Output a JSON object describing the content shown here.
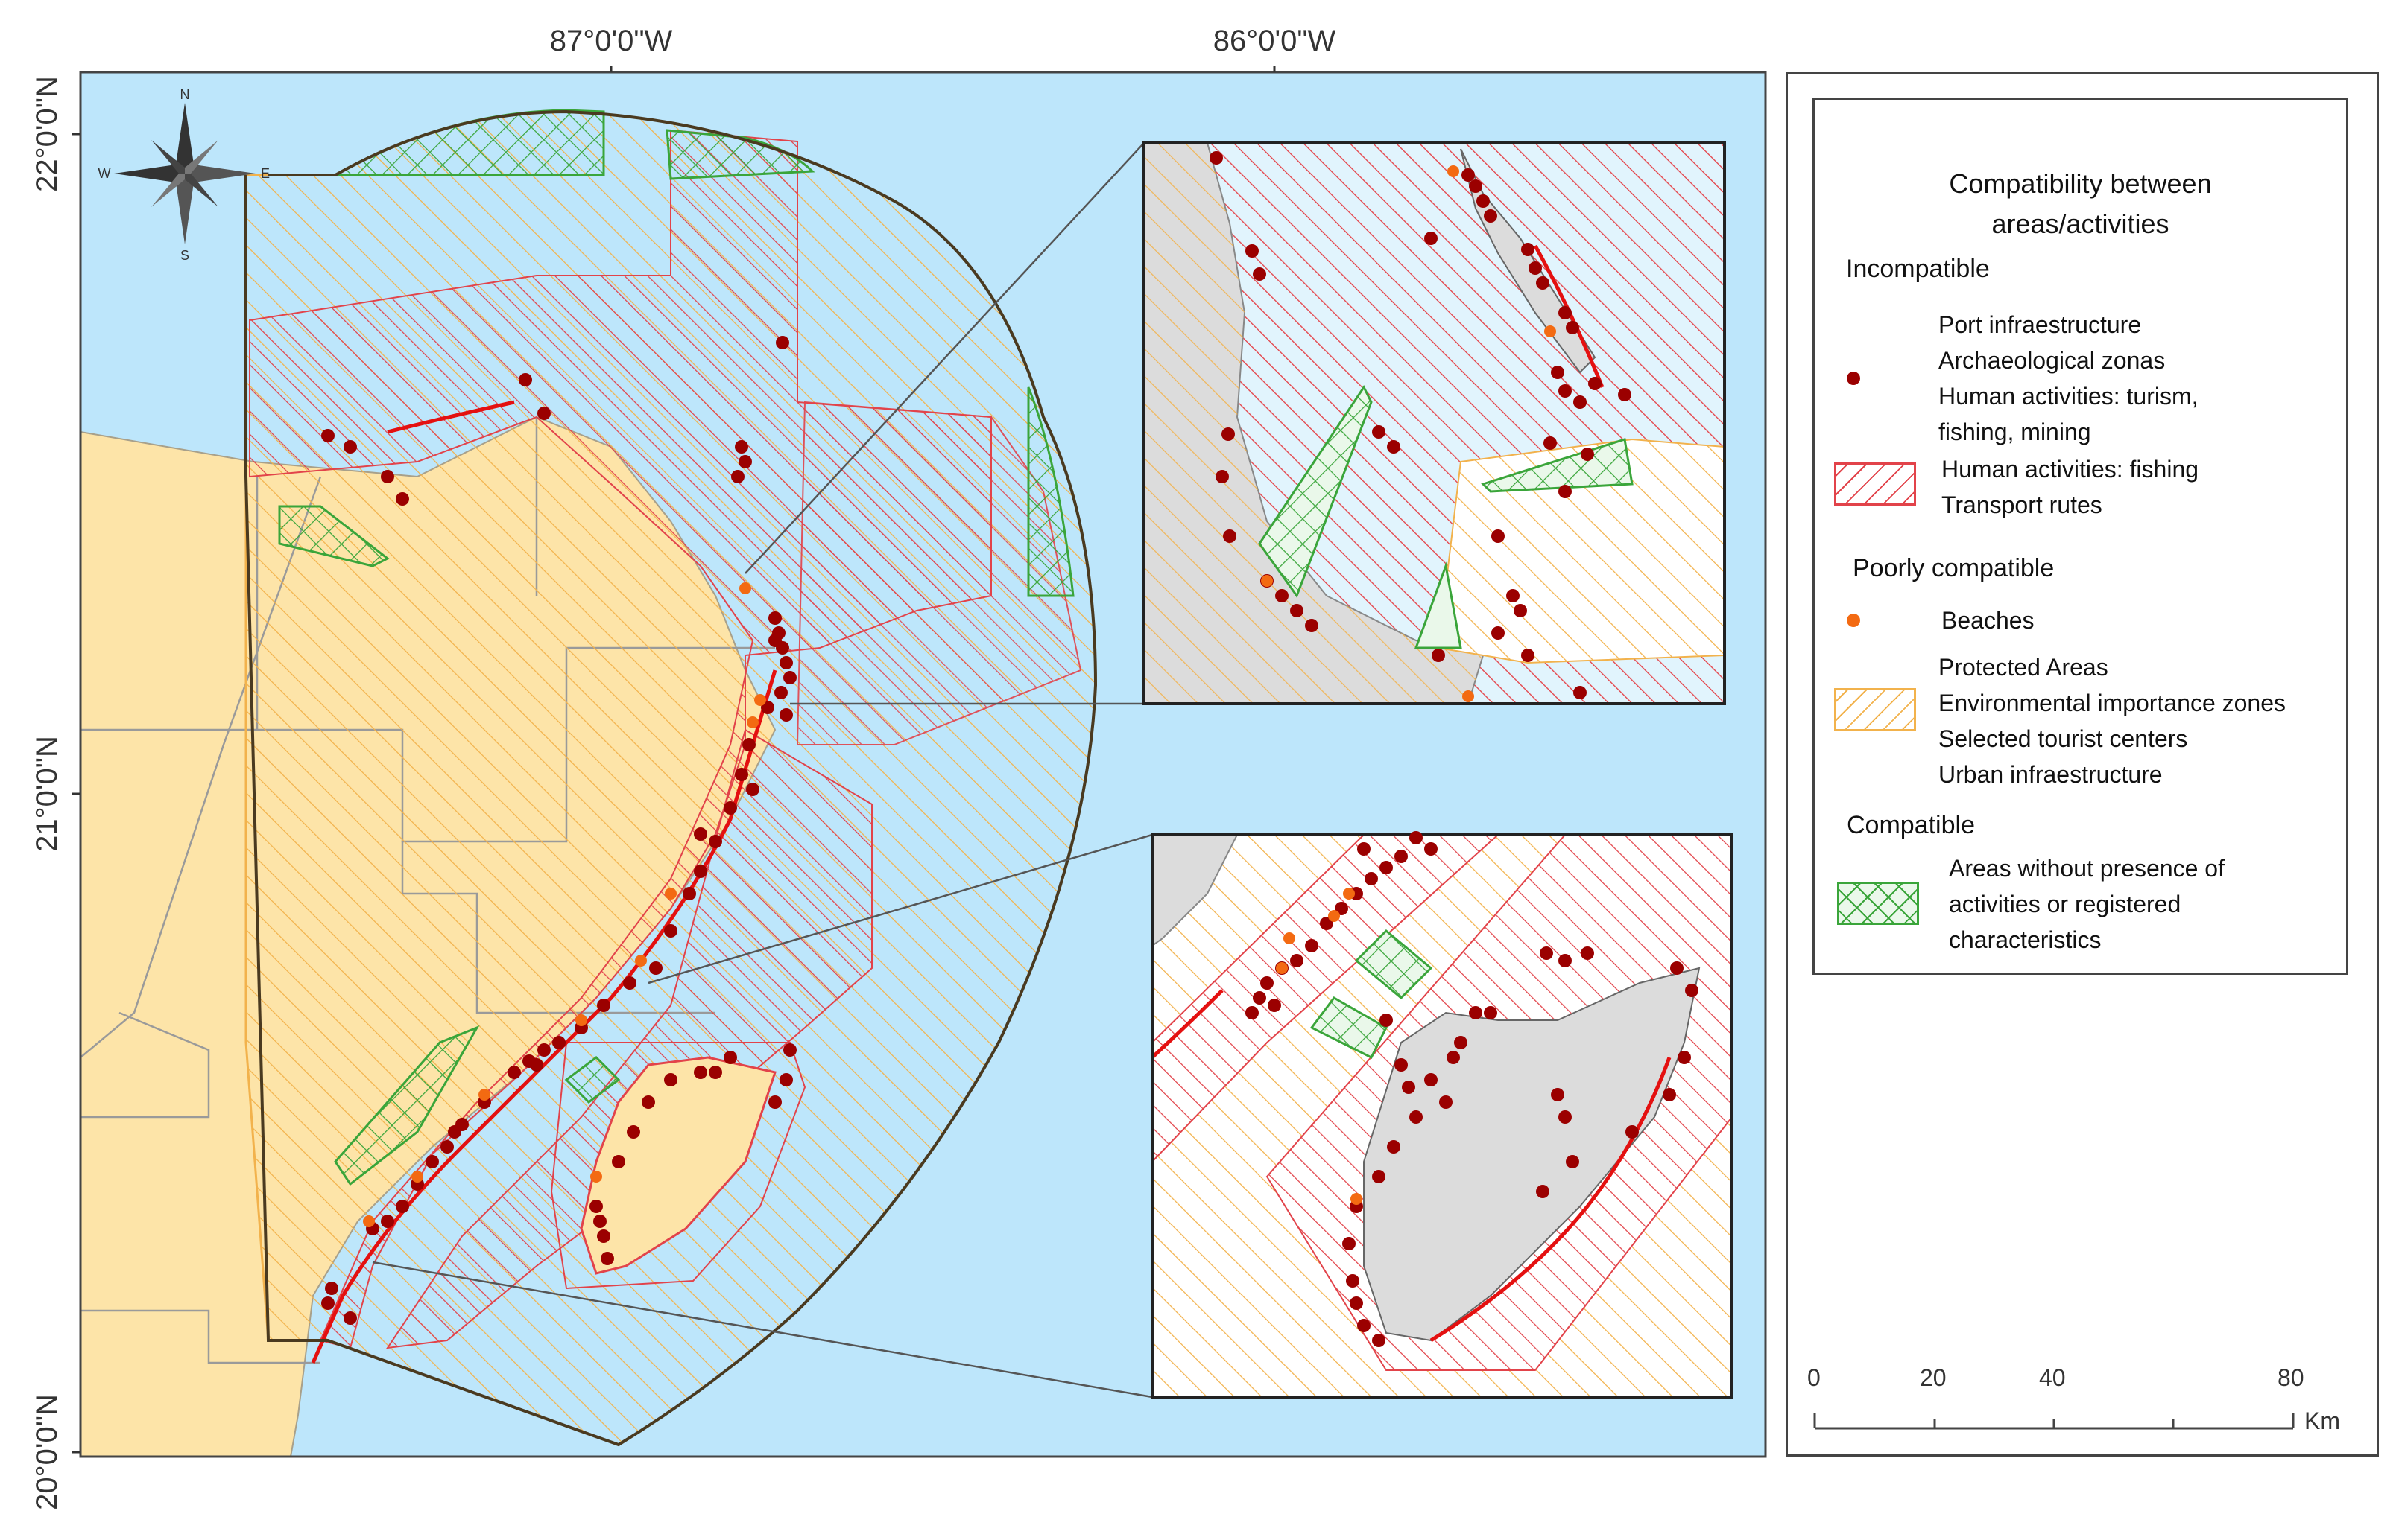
{
  "map": {
    "coords_top": [
      "87°0'0\"W",
      "86°0'0\"W"
    ],
    "coords_left": [
      "22°0'0\"N",
      "21°0'0\"N",
      "20°0'0\"N"
    ],
    "compass": {
      "n": "N",
      "s": "S",
      "e": "E",
      "w": "W"
    }
  },
  "legend": {
    "title": "Compatibility between\nareas/activities",
    "incompatible": {
      "heading": "Incompatible",
      "points_label": "Port infraestructure\nArchaeological zonas\nHuman activities: turism,\nfishing, mining",
      "polygon_label": "Human activities: fishing\nTransport rutes"
    },
    "poorly": {
      "heading": "Poorly compatible",
      "points_label": "Beaches",
      "polygon_label": "Protected Areas\nEnvironmental importance zones\nSelected tourist centers\nUrban infraestructure"
    },
    "compatible": {
      "heading": "Compatible",
      "polygon_label": "Areas without presence of\nactivities or registered\ncharacteristics"
    }
  },
  "scale_bar": {
    "ticks": [
      "0",
      "20",
      "40",
      "80"
    ],
    "unit": "Km"
  },
  "colors": {
    "sea": "#bde6fb",
    "land": "#fde4a8",
    "incompatible": "#e2434a",
    "poorly": "#f2b24c",
    "compatible": "#3aa53a",
    "point_incompatible": "#9b0000",
    "point_beach": "#f36a12",
    "inset_land": "#dcdcdc"
  }
}
